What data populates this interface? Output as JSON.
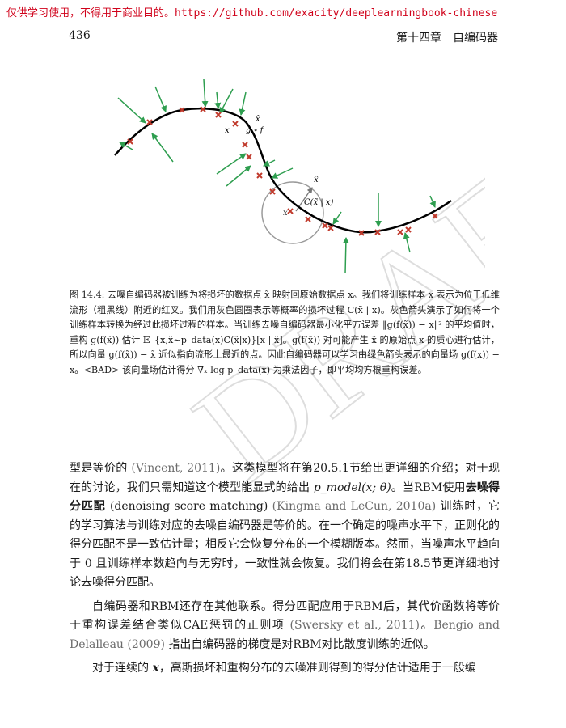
{
  "banner": {
    "notice": "仅供学习使用，不得用于商业目的。",
    "url": "https://github.com/exacity/deeplearningbook-chinese"
  },
  "header": {
    "page_number": "436",
    "chapter_title": "第十四章　自编码器"
  },
  "figure": {
    "labels": {
      "x_tilde_top": "x̃",
      "x_top": "x",
      "g_of_f": "g ∘ f",
      "x_tilde_mid": "x̃",
      "c_label": "C(x̃ | x)",
      "x_mid": "x"
    }
  },
  "caption": {
    "text": "图 14.4: 去噪自编码器被训练为将损坏的数据点 x̃ 映射回原始数据点 x。我们将训练样本 x 表示为位于低维流形（粗黑线）附近的红叉。我们用灰色圆圈表示等概率的损坏过程 C(x̃ | x)。灰色箭头演示了如何将一个训练样本转换为经过此损坏过程的样本。当训练去噪自编码器最小化平方误差 ‖g(f(x̃)) − x‖² 的平均值时，重构 g(f(x̃)) 估计 𝔼_{x,x̃∼p_data(x)C(x̃|x)}[x | x̃]。g(f(x̃)) 对可能产生 x̃ 的原始点 x 的质心进行估计，所以向量 g(f(x̃)) − x̃ 近似指向流形上最近的点。因此自编码器可以学习由绿色箭头表示的向量场 g(f(x)) − x。<BAD> 该向量场估计得分 ∇ₓ log p_data(x) 为乘法因子，即平均均方根重构误差。"
  },
  "body": {
    "p1": {
      "s1": "型是等价的",
      "cite1": "(Vincent, 2011)",
      "s2": "。这类模型将在第20.5.1节给出更详细的介绍；对于现在的讨论，我们只需知道这个模型能显式的给出",
      "m1": "p_model(x; θ)",
      "s3": "。当RBM使用",
      "b1": "去噪得分匹配",
      "s4": "(denoising score matching)",
      "cite2": "(Kingma and LeCun, 2010a)",
      "s5": "训练时，它的学习算法与训练对应的去噪自编码器是等价的。在一个确定的噪声水平下，正则化的得分匹配不是一致估计量；相反它会恢复分布的一个模糊版本。然而，当噪声水平趋向于 0 且训练样本数趋向与无穷时，一致性就会恢复。我们将会在第18.5节更详细地讨论去噪得分匹配。"
    },
    "p2": {
      "s1": "自编码器和RBM还存在其他联系。得分匹配应用于RBM后，其代价函数将等价于重构误差结合类似CAE惩罚的正则项",
      "cite1": "(Swersky et al., 2011)",
      "s2": "。",
      "cite2": "Bengio and Delalleau (2009)",
      "s3": "指出自编码器的梯度是对RBM对比散度训练的近似。"
    },
    "p3": {
      "s1": "对于连续的",
      "m1": "x",
      "s2": "，高斯损坏和重构分布的去噪准则得到的得分估计适用于一般编"
    }
  },
  "watermark": {
    "text": "DRAFT",
    "color": "#e6e6e6"
  },
  "colors": {
    "manifold": "#000000",
    "cross": "#c0392b",
    "arrow": "#2e9e4f",
    "circle": "#9a9a9a",
    "banner": "#d0021b"
  }
}
